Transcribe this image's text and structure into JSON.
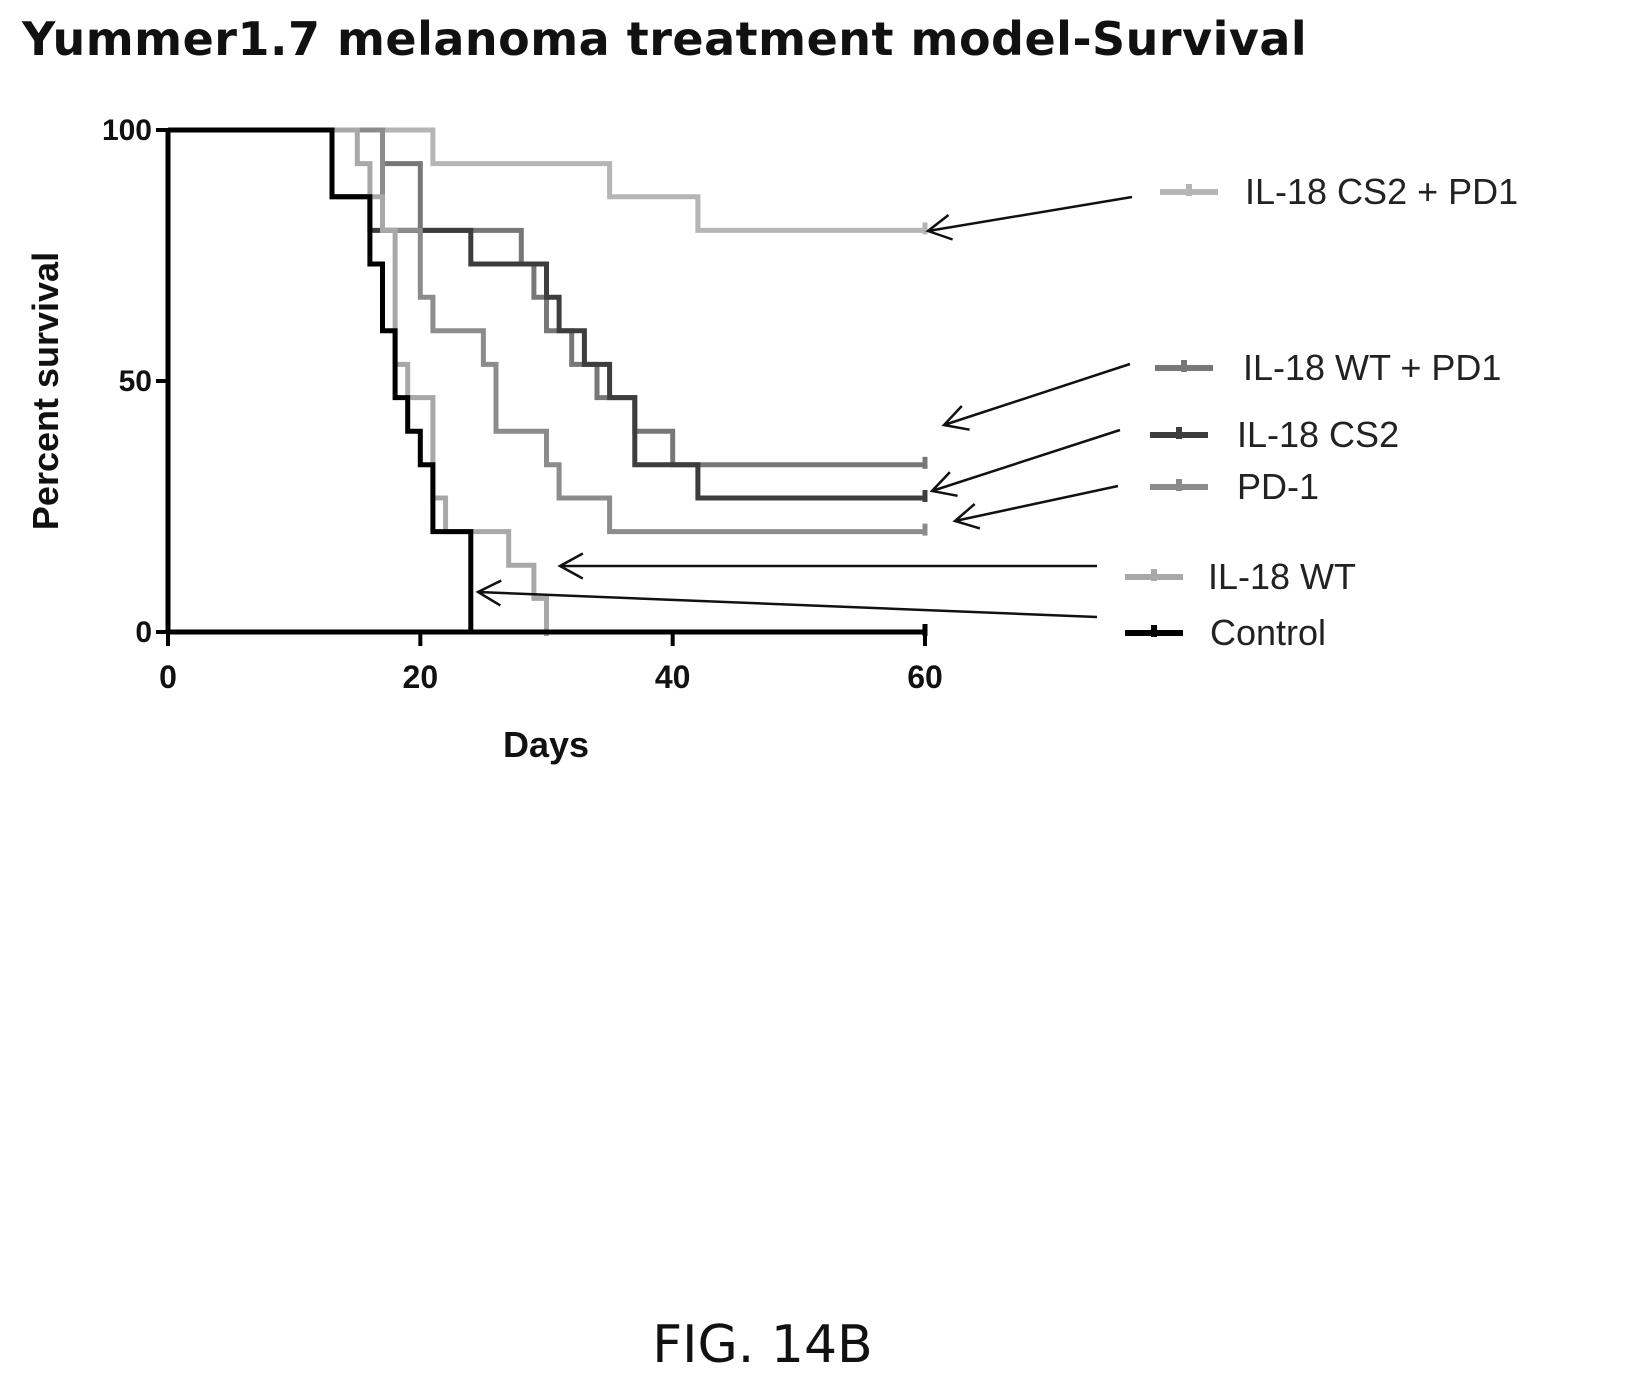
{
  "chart_data": {
    "type": "line",
    "title": "Yummer1.7 melanoma treatment model-Survival",
    "xlabel": "Days",
    "ylabel": "Percent survival",
    "xlim": [
      0,
      60
    ],
    "ylim": [
      0,
      100
    ],
    "xticks": [
      "0",
      "20",
      "40",
      "60"
    ],
    "yticks": [
      "0",
      "50",
      "100"
    ],
    "grid": false,
    "legend": "right, with arrows pointing to curves",
    "series": [
      {
        "name": "IL-18 CS2 + PD1",
        "color": "#b5b5b5",
        "steps": [
          [
            0,
            100
          ],
          [
            21,
            100
          ],
          [
            21,
            93.3
          ],
          [
            35,
            93.3
          ],
          [
            35,
            86.7
          ],
          [
            42,
            86.7
          ],
          [
            42,
            80
          ],
          [
            60,
            80
          ]
        ]
      },
      {
        "name": "IL-18 WT + PD1",
        "color": "#777777",
        "steps": [
          [
            0,
            100
          ],
          [
            17,
            100
          ],
          [
            17,
            93.3
          ],
          [
            20,
            93.3
          ],
          [
            20,
            80
          ],
          [
            28,
            80
          ],
          [
            28,
            73.3
          ],
          [
            29,
            73.3
          ],
          [
            29,
            66.7
          ],
          [
            30,
            66.7
          ],
          [
            30,
            60
          ],
          [
            32,
            60
          ],
          [
            32,
            53.3
          ],
          [
            34,
            53.3
          ],
          [
            34,
            46.7
          ],
          [
            37,
            46.7
          ],
          [
            37,
            40
          ],
          [
            40,
            40
          ],
          [
            40,
            33.3
          ],
          [
            60,
            33.3
          ]
        ]
      },
      {
        "name": "IL-18 CS2",
        "color": "#3d3d3d",
        "steps": [
          [
            0,
            100
          ],
          [
            13,
            100
          ],
          [
            13,
            86.7
          ],
          [
            16,
            86.7
          ],
          [
            16,
            80
          ],
          [
            24,
            80
          ],
          [
            24,
            73.3
          ],
          [
            30,
            73.3
          ],
          [
            30,
            66.7
          ],
          [
            31,
            66.7
          ],
          [
            31,
            60
          ],
          [
            33,
            60
          ],
          [
            33,
            53.3
          ],
          [
            35,
            53.3
          ],
          [
            35,
            46.7
          ],
          [
            37,
            46.7
          ],
          [
            37,
            33.3
          ],
          [
            42,
            33.3
          ],
          [
            42,
            26.7
          ],
          [
            60,
            26.7
          ]
        ]
      },
      {
        "name": "PD-1",
        "color": "#8c8c8c",
        "steps": [
          [
            0,
            100
          ],
          [
            17,
            100
          ],
          [
            17,
            80
          ],
          [
            20,
            80
          ],
          [
            20,
            66.7
          ],
          [
            21,
            66.7
          ],
          [
            21,
            60
          ],
          [
            25,
            60
          ],
          [
            25,
            53.3
          ],
          [
            26,
            53.3
          ],
          [
            26,
            40
          ],
          [
            30,
            40
          ],
          [
            30,
            33.3
          ],
          [
            31,
            33.3
          ],
          [
            31,
            26.7
          ],
          [
            35,
            26.7
          ],
          [
            35,
            20
          ],
          [
            60,
            20
          ]
        ]
      },
      {
        "name": "IL-18 WT",
        "color": "#a8a8a8",
        "steps": [
          [
            0,
            100
          ],
          [
            15,
            100
          ],
          [
            15,
            93.3
          ],
          [
            16,
            93.3
          ],
          [
            16,
            86.7
          ],
          [
            17,
            86.7
          ],
          [
            17,
            80
          ],
          [
            18,
            80
          ],
          [
            18,
            53.3
          ],
          [
            19,
            53.3
          ],
          [
            19,
            46.7
          ],
          [
            21,
            46.7
          ],
          [
            21,
            26.7
          ],
          [
            22,
            26.7
          ],
          [
            22,
            20
          ],
          [
            27,
            20
          ],
          [
            27,
            13.3
          ],
          [
            29,
            13.3
          ],
          [
            29,
            6.7
          ],
          [
            30,
            6.7
          ],
          [
            30,
            0
          ]
        ]
      },
      {
        "name": "Control",
        "color": "#000000",
        "steps": [
          [
            0,
            100
          ],
          [
            13,
            100
          ],
          [
            13,
            86.7
          ],
          [
            16,
            86.7
          ],
          [
            16,
            73.3
          ],
          [
            17,
            73.3
          ],
          [
            17,
            60
          ],
          [
            18,
            60
          ],
          [
            18,
            46.7
          ],
          [
            19,
            46.7
          ],
          [
            19,
            40
          ],
          [
            20,
            40
          ],
          [
            20,
            33.3
          ],
          [
            21,
            33.3
          ],
          [
            21,
            20
          ],
          [
            24,
            20
          ],
          [
            24,
            0
          ],
          [
            60,
            0
          ]
        ]
      }
    ]
  },
  "figure_label": "FIG. 14B"
}
